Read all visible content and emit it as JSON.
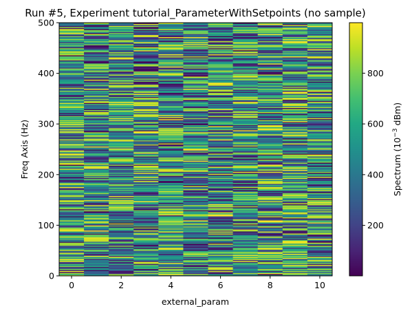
{
  "chart_data": {
    "type": "heatmap",
    "title": "Run #5, Experiment tutorial_ParameterWithSetpoints (no sample)",
    "xlabel": "external_param",
    "ylabel": "Freq Axis (Hz)",
    "colorbar_label_prefix": "Spectrum (10",
    "colorbar_label_exp": "−3",
    "colorbar_label_suffix": " dBm)",
    "x_ticks": [
      "0",
      "2",
      "4",
      "6",
      "8",
      "10"
    ],
    "y_ticks": [
      "0",
      "100",
      "200",
      "300",
      "400",
      "500"
    ],
    "colorbar_ticks": [
      "200",
      "400",
      "600",
      "800"
    ],
    "xlim": [
      -0.5,
      10.5
    ],
    "ylim": [
      0,
      500
    ],
    "clim": [
      1,
      999
    ],
    "x_values": [
      0,
      1,
      2,
      3,
      4,
      5,
      6,
      7,
      8,
      9,
      10
    ],
    "colormap": "viridis",
    "colormap_stops": [
      "#440154",
      "#482475",
      "#414487",
      "#355f8d",
      "#2a788e",
      "#21918c",
      "#22a884",
      "#44bf70",
      "#7ad151",
      "#bddf26",
      "#fde725"
    ],
    "note_values": "Per-cell spectrum values appear random-uniform in [1, 999] across ~500 frequency rows for each of 11 external_param columns"
  }
}
